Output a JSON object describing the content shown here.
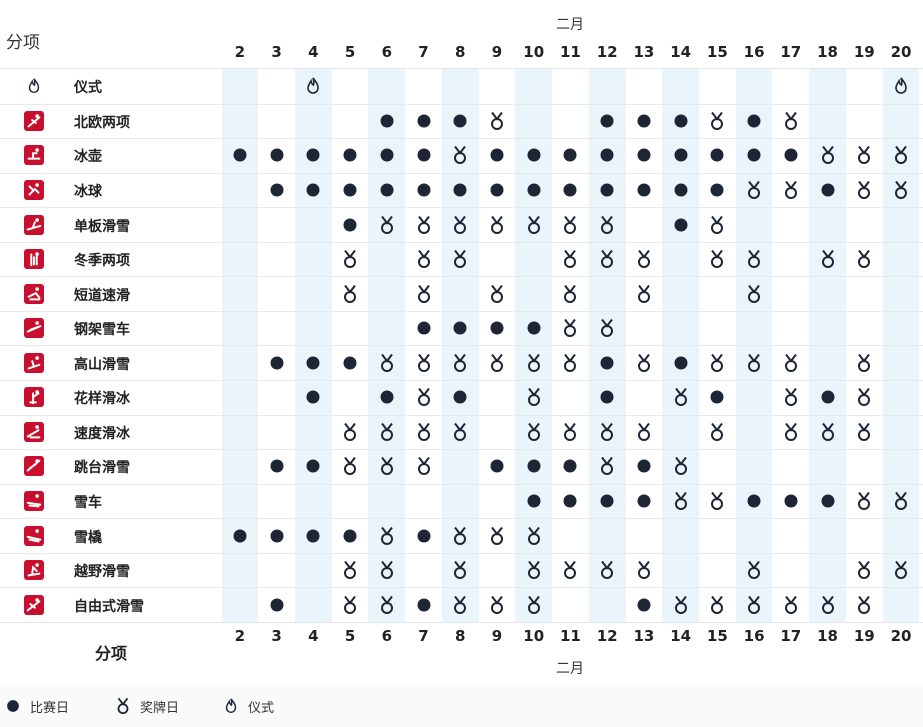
{
  "header": {
    "month_label": "二月",
    "corner_title": "分项"
  },
  "footer": {
    "title": "分项",
    "month_label": "二月"
  },
  "days": [
    "2",
    "3",
    "4",
    "5",
    "6",
    "7",
    "8",
    "9",
    "10",
    "11",
    "12",
    "13",
    "14",
    "15",
    "16",
    "17",
    "18",
    "19",
    "20"
  ],
  "shaded_day_indices": [
    0,
    2,
    4,
    6,
    8,
    10,
    12,
    14,
    16,
    18
  ],
  "legend": {
    "competition": "比赛日",
    "medal": "奖牌日",
    "ceremony": "仪式"
  },
  "colors": {
    "brand_red": "#c8102e",
    "mark_dark": "#1e2535",
    "column_shade": "#e9f4fb"
  },
  "rows": [
    {
      "sport": "仪式",
      "icon": "flame-icon",
      "marks": [
        "",
        "",
        "C",
        "",
        "",
        "",
        "",
        "",
        "",
        "",
        "",
        "",
        "",
        "",
        "",
        "",
        "",
        "",
        "C"
      ]
    },
    {
      "sport": "北欧两项",
      "icon": "nordic-combined-icon",
      "marks": [
        "",
        "",
        "",
        "",
        "D",
        "D",
        "D",
        "M",
        "",
        "",
        "D",
        "D",
        "D",
        "M",
        "D",
        "M",
        "",
        "",
        ""
      ]
    },
    {
      "sport": "冰壶",
      "icon": "curling-icon",
      "marks": [
        "D",
        "D",
        "D",
        "D",
        "D",
        "D",
        "M",
        "D",
        "D",
        "D",
        "D",
        "D",
        "D",
        "D",
        "D",
        "D",
        "M",
        "M",
        "M"
      ]
    },
    {
      "sport": "冰球",
      "icon": "ice-hockey-icon",
      "marks": [
        "",
        "D",
        "D",
        "D",
        "D",
        "D",
        "D",
        "D",
        "D",
        "D",
        "D",
        "D",
        "D",
        "D",
        "M",
        "M",
        "D",
        "M",
        "M"
      ]
    },
    {
      "sport": "单板滑雪",
      "icon": "snowboard-icon",
      "marks": [
        "",
        "",
        "",
        "D",
        "M",
        "M",
        "M",
        "M",
        "M",
        "M",
        "M",
        "",
        "D",
        "M",
        "",
        "",
        "",
        "",
        ""
      ]
    },
    {
      "sport": "冬季两项",
      "icon": "biathlon-icon",
      "marks": [
        "",
        "",
        "",
        "M",
        "",
        "M",
        "M",
        "",
        "",
        "M",
        "M",
        "M",
        "",
        "M",
        "M",
        "",
        "M",
        "M",
        ""
      ]
    },
    {
      "sport": "短道速滑",
      "icon": "short-track-icon",
      "marks": [
        "",
        "",
        "",
        "M",
        "",
        "M",
        "",
        "M",
        "",
        "M",
        "",
        "M",
        "",
        "",
        "M",
        "",
        "",
        "",
        ""
      ]
    },
    {
      "sport": "钢架雪车",
      "icon": "skeleton-icon",
      "marks": [
        "",
        "",
        "",
        "",
        "",
        "D",
        "D",
        "D",
        "D",
        "M",
        "M",
        "",
        "",
        "",
        "",
        "",
        "",
        "",
        ""
      ]
    },
    {
      "sport": "高山滑雪",
      "icon": "alpine-skiing-icon",
      "marks": [
        "",
        "D",
        "D",
        "D",
        "M",
        "M",
        "M",
        "M",
        "M",
        "M",
        "D",
        "M",
        "D",
        "M",
        "M",
        "M",
        "",
        "M",
        ""
      ]
    },
    {
      "sport": "花样滑冰",
      "icon": "figure-skating-icon",
      "marks": [
        "",
        "",
        "D",
        "",
        "D",
        "M",
        "D",
        "",
        "M",
        "",
        "D",
        "",
        "M",
        "D",
        "",
        "M",
        "D",
        "M",
        ""
      ]
    },
    {
      "sport": "速度滑冰",
      "icon": "speed-skating-icon",
      "marks": [
        "",
        "",
        "",
        "M",
        "M",
        "M",
        "M",
        "",
        "M",
        "M",
        "M",
        "M",
        "",
        "M",
        "",
        "M",
        "M",
        "M",
        ""
      ]
    },
    {
      "sport": "跳台滑雪",
      "icon": "ski-jumping-icon",
      "marks": [
        "",
        "D",
        "D",
        "M",
        "M",
        "M",
        "",
        "D",
        "D",
        "D",
        "M",
        "D",
        "M",
        "",
        "",
        "",
        "",
        "",
        ""
      ]
    },
    {
      "sport": "雪车",
      "icon": "bobsleigh-icon",
      "marks": [
        "",
        "",
        "",
        "",
        "",
        "",
        "",
        "",
        "D",
        "D",
        "D",
        "D",
        "M",
        "M",
        "D",
        "D",
        "D",
        "M",
        "M"
      ]
    },
    {
      "sport": "雪橇",
      "icon": "luge-icon",
      "marks": [
        "D",
        "D",
        "D",
        "D",
        "M",
        "D",
        "M",
        "M",
        "M",
        "",
        "",
        "",
        "",
        "",
        "",
        "",
        "",
        "",
        ""
      ]
    },
    {
      "sport": "越野滑雪",
      "icon": "cross-country-icon",
      "marks": [
        "",
        "",
        "",
        "M",
        "M",
        "",
        "M",
        "",
        "M",
        "M",
        "M",
        "M",
        "",
        "",
        "M",
        "",
        "",
        "M",
        "M"
      ]
    },
    {
      "sport": "自由式滑雪",
      "icon": "freestyle-skiing-icon",
      "marks": [
        "",
        "D",
        "",
        "M",
        "M",
        "D",
        "M",
        "M",
        "M",
        "",
        "",
        "D",
        "M",
        "M",
        "M",
        "M",
        "M",
        "M",
        ""
      ]
    }
  ]
}
